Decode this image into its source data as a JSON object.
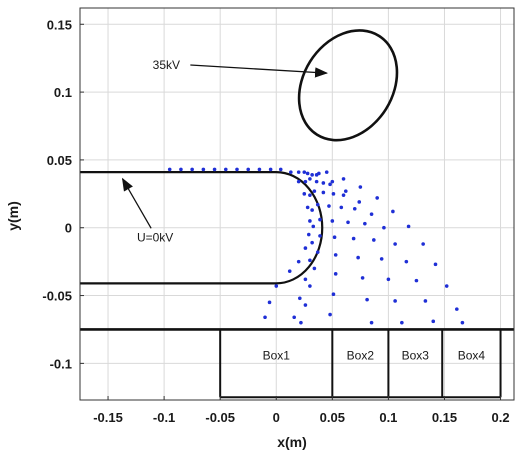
{
  "chart_data": {
    "type": "scatter",
    "xlabel": "x(m)",
    "ylabel": "y(m)",
    "xlim": [
      -0.175,
      0.212
    ],
    "ylim": [
      -0.127,
      0.162
    ],
    "grid": true,
    "xticks": [
      -0.15,
      -0.1,
      -0.05,
      0,
      0.05,
      0.1,
      0.15,
      0.2
    ],
    "xtick_labels": [
      "-0.15",
      "-0.1",
      "-0.05",
      "0",
      "0.05",
      "0.1",
      "0.15",
      "0.2"
    ],
    "yticks": [
      0.15,
      0.1,
      0.05,
      0,
      -0.05,
      -0.1
    ],
    "ytick_labels": [
      "0.15",
      "0.1",
      "0.05",
      "0",
      "-0.05",
      "-0.1"
    ],
    "colors": {
      "trajectory": "#1f2fd6",
      "structure": "#111111",
      "grid": "#d9d9d9",
      "axes": "#333333"
    },
    "electrodes": [
      {
        "label": "U=0kV",
        "shape": "u-shape",
        "top_y": 0.041,
        "bottom_y": -0.041,
        "x_start": -0.175,
        "x_end": 0.0,
        "tip_radius": 0.041,
        "label_x": -0.108,
        "label_y": -0.01,
        "arrow_tip": [
          -0.137,
          0.036
        ]
      },
      {
        "label": "35kV",
        "shape": "ellipse",
        "center": [
          0.064,
          0.105
        ],
        "rx": 0.052,
        "ry": 0.033,
        "angle_deg": -58,
        "label_x": -0.098,
        "label_y": 0.117,
        "arrow_tip": [
          0.045,
          0.114
        ]
      }
    ],
    "boxes": {
      "plate_y": -0.075,
      "plate_x": [
        -0.175,
        0.212
      ],
      "bottom_y": -0.125,
      "dividers": [
        -0.05,
        0.05,
        0.1,
        0.148,
        0.2
      ],
      "labels": [
        "Box1",
        "Box2",
        "Box3",
        "Box4"
      ],
      "label_y": -0.097
    },
    "series": [
      {
        "points": [
          [
            -0.095,
            0.043
          ],
          [
            -0.085,
            0.043
          ],
          [
            -0.075,
            0.043
          ],
          [
            -0.065,
            0.043
          ],
          [
            -0.055,
            0.043
          ],
          [
            -0.045,
            0.043
          ],
          [
            -0.035,
            0.043
          ],
          [
            -0.025,
            0.043
          ],
          [
            -0.015,
            0.043
          ],
          [
            -0.005,
            0.043
          ],
          [
            0.004,
            0.043
          ],
          [
            0.013,
            0.041
          ],
          [
            0.02,
            0.034
          ],
          [
            0.025,
            0.025
          ],
          [
            0.028,
            0.015
          ],
          [
            0.03,
            0.005
          ],
          [
            0.029,
            -0.005
          ],
          [
            0.026,
            -0.015
          ],
          [
            0.02,
            -0.025
          ],
          [
            0.012,
            -0.032
          ],
          [
            2.2e-05,
            -0.043
          ],
          [
            -0.006,
            -0.055
          ],
          [
            -0.01,
            -0.066
          ]
        ]
      },
      {
        "points": [
          [
            0.025,
            0.041
          ],
          [
            0.03,
            0.036
          ],
          [
            0.034,
            0.027
          ],
          [
            0.037,
            0.017
          ],
          [
            0.039,
            0.006
          ],
          [
            0.039,
            -0.006
          ],
          [
            0.037,
            -0.018
          ],
          [
            0.034,
            -0.03
          ],
          [
            0.03,
            -0.043
          ],
          [
            0.026,
            -0.057
          ],
          [
            0.022,
            -0.07
          ]
        ]
      },
      {
        "points": [
          [
            0.028,
            0.04
          ],
          [
            0.036,
            0.034
          ],
          [
            0.042,
            0.026
          ],
          [
            0.047,
            0.016
          ],
          [
            0.05,
            0.005
          ],
          [
            0.052,
            -0.007
          ],
          [
            0.053,
            -0.02
          ],
          [
            0.053,
            -0.034
          ],
          [
            0.051,
            -0.049
          ],
          [
            0.048,
            -0.064
          ]
        ]
      },
      {
        "points": [
          [
            0.032,
            0.039
          ],
          [
            0.042,
            0.033
          ],
          [
            0.051,
            0.025
          ],
          [
            0.058,
            0.015
          ],
          [
            0.064,
            0.004
          ],
          [
            0.069,
            -0.008
          ],
          [
            0.073,
            -0.022
          ],
          [
            0.077,
            -0.037
          ],
          [
            0.081,
            -0.053
          ],
          [
            0.085,
            -0.07
          ]
        ]
      },
      {
        "points": [
          [
            0.036,
            0.039
          ],
          [
            0.048,
            0.032
          ],
          [
            0.06,
            0.024
          ],
          [
            0.07,
            0.014
          ],
          [
            0.079,
            0.003
          ],
          [
            0.087,
            -0.009
          ],
          [
            0.094,
            -0.023
          ],
          [
            0.1,
            -0.038
          ],
          [
            0.106,
            -0.054
          ],
          [
            0.112,
            -0.07
          ]
        ]
      },
      {
        "points": [
          [
            0.038,
            0.04
          ],
          [
            0.05,
            0.034
          ],
          [
            0.062,
            0.027
          ],
          [
            0.074,
            0.019
          ],
          [
            0.085,
            0.01
          ],
          [
            0.096,
            0.0
          ],
          [
            0.106,
            -0.012
          ],
          [
            0.116,
            -0.025
          ],
          [
            0.125,
            -0.039
          ],
          [
            0.133,
            -0.054
          ],
          [
            0.14,
            -0.069
          ]
        ]
      },
      {
        "points": [
          [
            0.045,
            0.041
          ],
          [
            0.06,
            0.036
          ],
          [
            0.075,
            0.03
          ],
          [
            0.09,
            0.022
          ],
          [
            0.104,
            0.012
          ],
          [
            0.118,
            0.001
          ],
          [
            0.131,
            -0.012
          ],
          [
            0.142,
            -0.027
          ],
          [
            0.152,
            -0.043
          ],
          [
            0.161,
            -0.06
          ],
          [
            0.166,
            -0.07
          ]
        ]
      },
      {
        "points": [
          [
            0.02,
            0.041
          ],
          [
            0.026,
            0.034
          ],
          [
            0.03,
            0.024
          ],
          [
            0.032,
            0.013
          ],
          [
            0.033,
            0.001
          ],
          [
            0.032,
            -0.011
          ],
          [
            0.03,
            -0.024
          ],
          [
            0.026,
            -0.038
          ],
          [
            0.021,
            -0.052
          ],
          [
            0.016,
            -0.066
          ]
        ]
      }
    ]
  }
}
